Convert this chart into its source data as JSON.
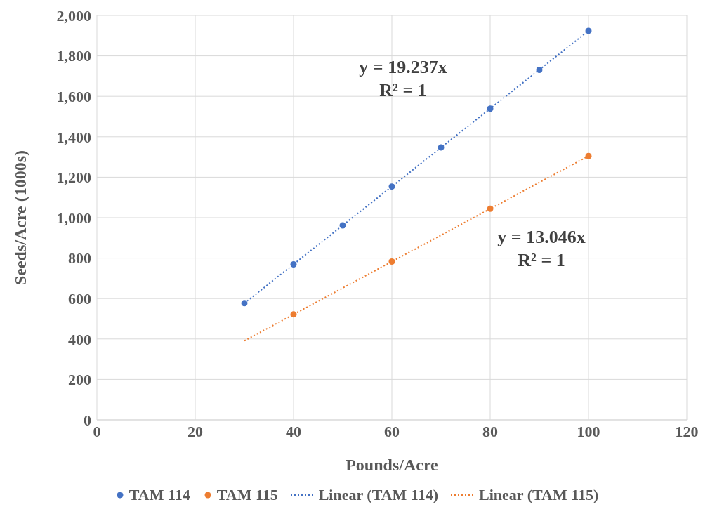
{
  "chart_data": {
    "type": "scatter",
    "xlabel": "Pounds/Acre",
    "ylabel": "Seeds/Acre (1000s)",
    "xlim": [
      0,
      120
    ],
    "xticks": [
      0,
      20,
      40,
      60,
      80,
      100,
      120
    ],
    "ylim": [
      0,
      2000
    ],
    "yticks": [
      0,
      {
        "value": 200,
        "label": "200"
      },
      {
        "value": 400,
        "label": "400"
      },
      {
        "value": 600,
        "label": "600"
      },
      {
        "value": 800,
        "label": "800"
      },
      {
        "value": 1000,
        "label": "1,000"
      },
      {
        "value": 1200,
        "label": "1,200"
      },
      {
        "value": 1400,
        "label": "1,400"
      },
      {
        "value": 1600,
        "label": "1,600"
      },
      {
        "value": 1800,
        "label": "1,800"
      },
      {
        "value": 2000,
        "label": "2,000"
      }
    ],
    "grid": true,
    "legend": "bottom",
    "series": [
      {
        "name": "TAM 114",
        "type": "scatter",
        "marker": "circle",
        "color": "#4472c4",
        "x": [
          30,
          40,
          50,
          60,
          70,
          80,
          90,
          100
        ],
        "values": [
          577,
          769,
          962,
          1154,
          1347,
          1539,
          1731,
          1924
        ]
      },
      {
        "name": "TAM 115",
        "type": "scatter",
        "marker": "circle",
        "color": "#ed7d31",
        "x": [
          40,
          60,
          80,
          100
        ],
        "values": [
          522,
          783,
          1044,
          1305
        ]
      },
      {
        "name": "Linear (TAM 114)",
        "type": "line",
        "line_style": "dotted",
        "color": "#4472c4",
        "x": [
          30,
          100
        ],
        "values": [
          577,
          1924
        ]
      },
      {
        "name": "Linear (TAM 115)",
        "type": "line",
        "line_style": "dotted",
        "color": "#ed7d31",
        "x": [
          30,
          100
        ],
        "values": [
          391,
          1305
        ]
      }
    ],
    "annotations": [
      "y = 19.237x",
      "R² = 1",
      "y = 13.046x",
      "R² = 1"
    ]
  }
}
